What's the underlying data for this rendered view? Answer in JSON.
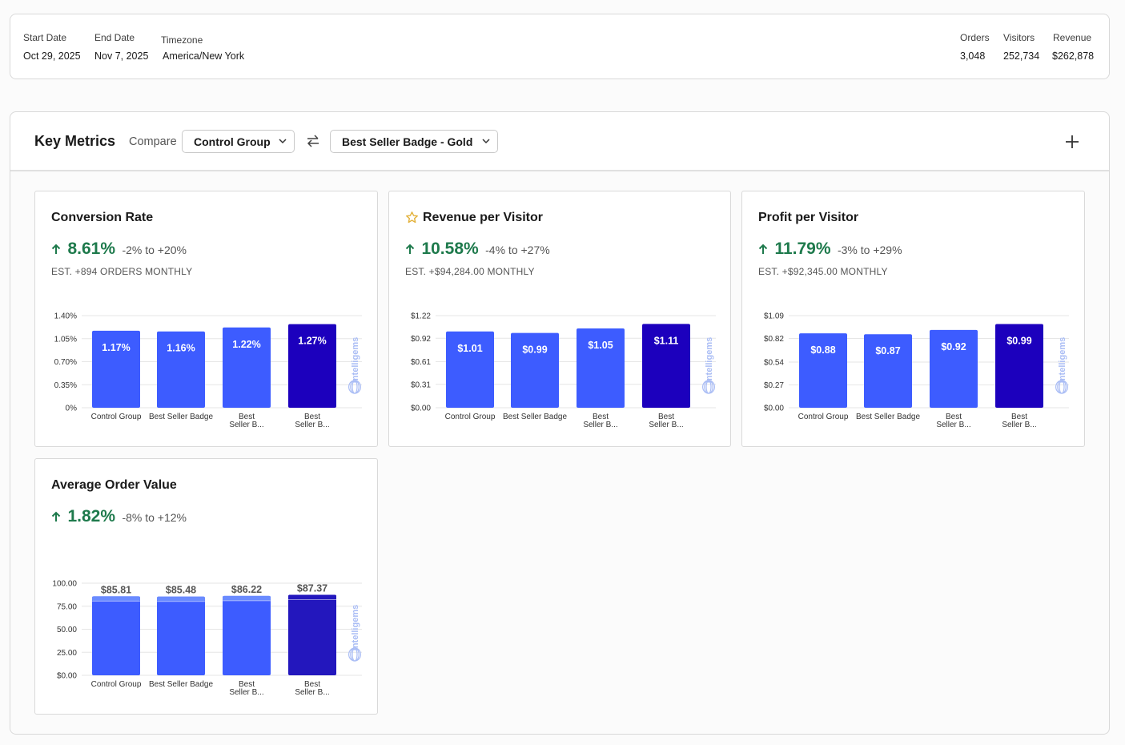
{
  "summary": {
    "start_date_label": "Start Date",
    "start_date": "Oct 29, 2025",
    "end_date_label": "End Date",
    "end_date": "Nov 7, 2025",
    "timezone_label": "Timezone",
    "timezone": "America/New York",
    "orders_label": "Orders",
    "orders": "3,048",
    "visitors_label": "Visitors",
    "visitors": "252,734",
    "revenue_label": "Revenue",
    "revenue": "$262,878"
  },
  "key_metrics": {
    "title": "Key Metrics",
    "compare_label": "Compare",
    "compare_left": "Control Group",
    "compare_right": "Best Seller Badge - Gold",
    "swap_icon": "swap-arrows-icon",
    "add_icon": "plus-icon"
  },
  "colors": {
    "bar": "#3d5cff",
    "bar_selected": "#1c00bd",
    "bar_selected_aov": "#2317bd",
    "bar_top_aov": "#6a8bff",
    "positive": "#1e7a4c",
    "watermark": "#aabdf5",
    "star": "#e3b23c"
  },
  "cards": [
    {
      "title": "Conversion Rate",
      "starred": false,
      "lift": "8.61%",
      "range": "-2% to +20%",
      "est": "EST. +894 ORDERS MONTHLY",
      "watermark": "intelligems"
    },
    {
      "title": "Revenue per Visitor",
      "starred": true,
      "lift": "10.58%",
      "range": "-4% to +27%",
      "est": "EST. +$94,284.00 MONTHLY",
      "watermark": "intelligems"
    },
    {
      "title": "Profit per Visitor",
      "starred": false,
      "lift": "11.79%",
      "range": "-3% to +29%",
      "est": "EST. +$92,345.00 MONTHLY",
      "watermark": "intelligems"
    },
    {
      "title": "Average Order Value",
      "starred": false,
      "lift": "1.82%",
      "range": "-8% to +12%",
      "est": "",
      "watermark": "intelligems"
    }
  ],
  "chart_data": [
    {
      "type": "bar",
      "title": "Conversion Rate",
      "categories": [
        [
          "Control Group"
        ],
        [
          "Best Seller Badge"
        ],
        [
          "Best",
          "Seller B..."
        ],
        [
          "Best",
          "Seller B..."
        ]
      ],
      "values": [
        1.17,
        1.16,
        1.22,
        1.27
      ],
      "value_labels": [
        "1.17%",
        "1.16%",
        "1.22%",
        "1.27%"
      ],
      "yticks": [
        0,
        0.35,
        0.7,
        1.05,
        1.4
      ],
      "ytick_labels": [
        "0%",
        "0.35%",
        "0.70%",
        "1.05%",
        "1.40%"
      ],
      "ylim": [
        0,
        1.4
      ],
      "selected_index": 3,
      "label_inside": true
    },
    {
      "type": "bar",
      "title": "Revenue per Visitor",
      "categories": [
        [
          "Control Group"
        ],
        [
          "Best Seller Badge"
        ],
        [
          "Best",
          "Seller B..."
        ],
        [
          "Best",
          "Seller B..."
        ]
      ],
      "values": [
        1.01,
        0.99,
        1.05,
        1.11
      ],
      "value_labels": [
        "$1.01",
        "$0.99",
        "$1.05",
        "$1.11"
      ],
      "yticks": [
        0,
        0.31,
        0.61,
        0.92,
        1.22
      ],
      "ytick_labels": [
        "$0.00",
        "$0.31",
        "$0.61",
        "$0.92",
        "$1.22"
      ],
      "ylim": [
        0,
        1.22
      ],
      "selected_index": 3,
      "label_inside": true
    },
    {
      "type": "bar",
      "title": "Profit per Visitor",
      "categories": [
        [
          "Control Group"
        ],
        [
          "Best Seller Badge"
        ],
        [
          "Best",
          "Seller B..."
        ],
        [
          "Best",
          "Seller B..."
        ]
      ],
      "values": [
        0.88,
        0.87,
        0.92,
        0.99
      ],
      "value_labels": [
        "$0.88",
        "$0.87",
        "$0.92",
        "$0.99"
      ],
      "yticks": [
        0,
        0.27,
        0.54,
        0.82,
        1.09
      ],
      "ytick_labels": [
        "$0.00",
        "$0.27",
        "$0.54",
        "$0.82",
        "$1.09"
      ],
      "ylim": [
        0,
        1.09
      ],
      "selected_index": 3,
      "label_inside": true
    },
    {
      "type": "bar",
      "title": "Average Order Value",
      "categories": [
        [
          "Control Group"
        ],
        [
          "Best Seller Badge"
        ],
        [
          "Best",
          "Seller B..."
        ],
        [
          "Best",
          "Seller B..."
        ]
      ],
      "values": [
        85.81,
        85.48,
        86.22,
        87.37
      ],
      "value_labels": [
        "$85.81",
        "$85.48",
        "$86.22",
        "$87.37"
      ],
      "yticks": [
        0,
        25,
        50,
        75,
        100
      ],
      "ytick_labels": [
        "$0.00",
        "25.00",
        "50.00",
        "75.00",
        "100.00"
      ],
      "ylim": [
        0,
        100
      ],
      "selected_index": 3,
      "label_inside": false,
      "stack_split": 0.93
    }
  ]
}
